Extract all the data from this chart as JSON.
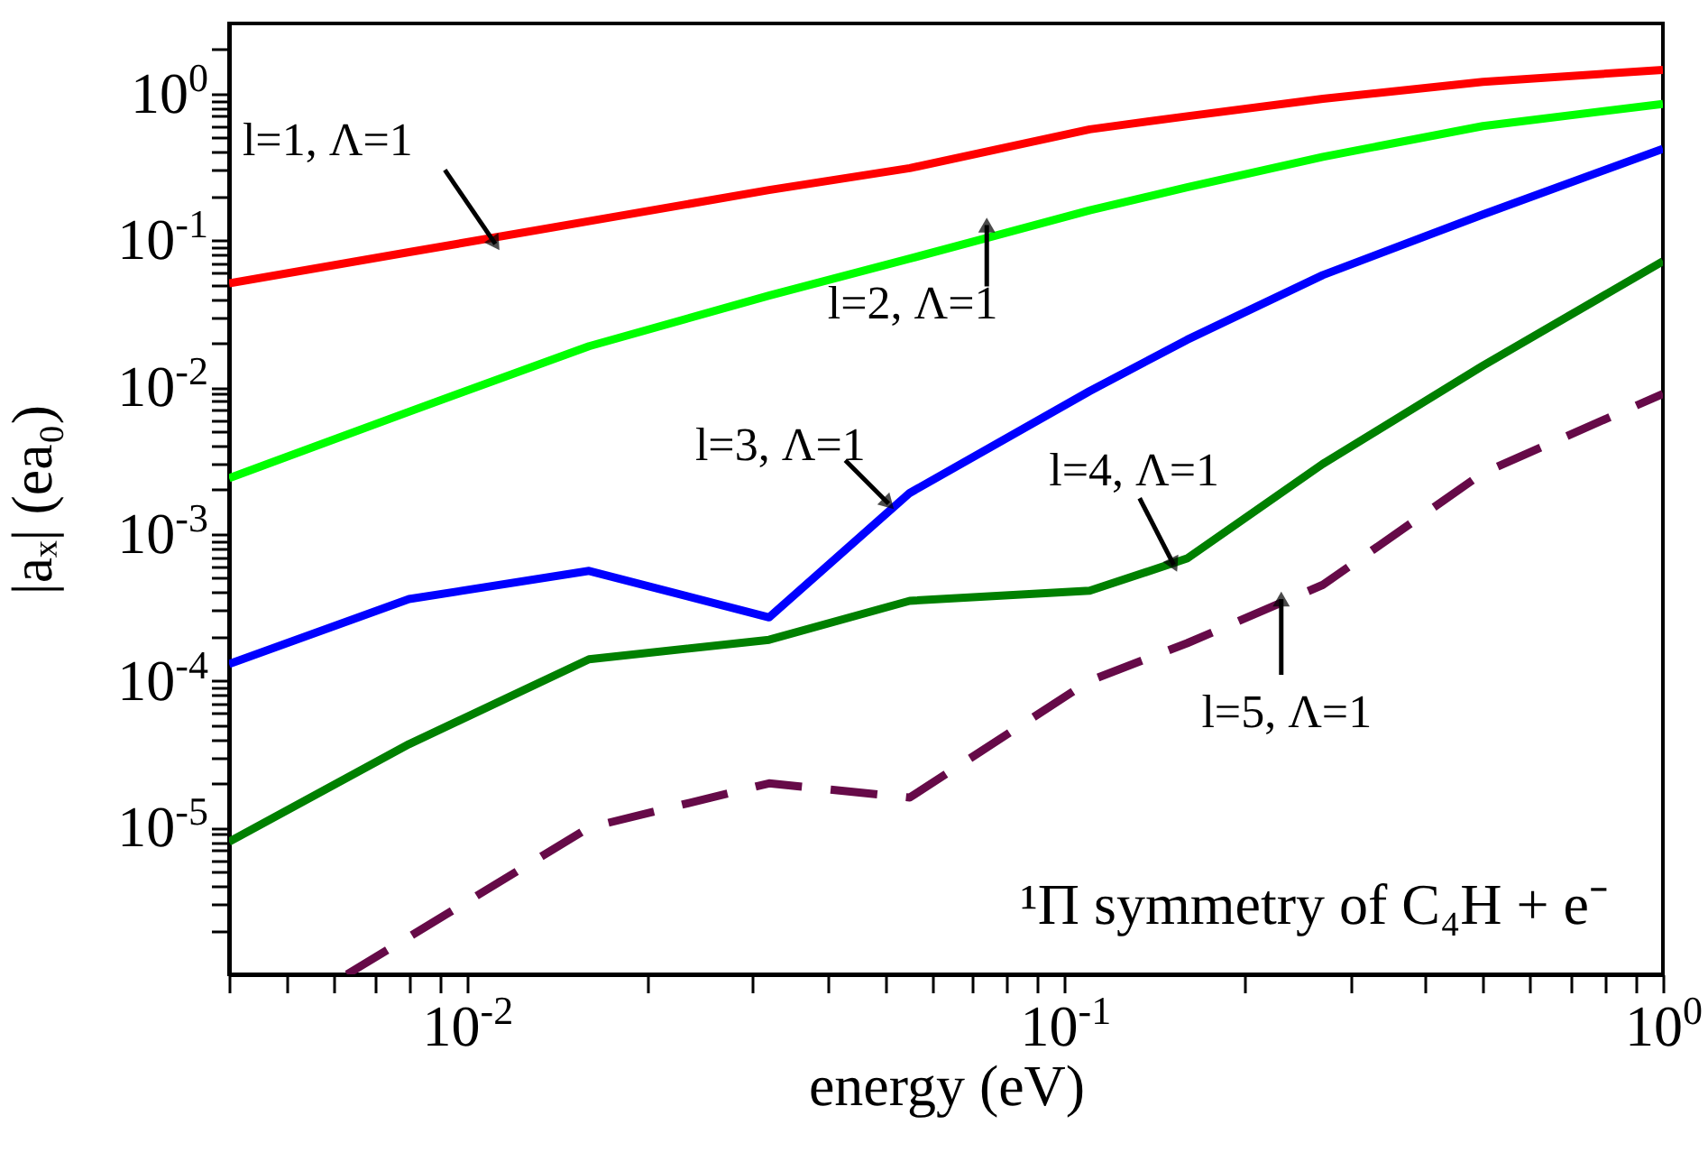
{
  "chart_data": {
    "type": "line",
    "xlabel": "energy (eV)",
    "ylabel": "|aₓ| (ea₀)",
    "log": "xy",
    "xlim": [
      0.004,
      1
    ],
    "ylim": [
      1e-06,
      3
    ],
    "xticks": [
      {
        "value": 0.004,
        "label": null
      },
      {
        "value": 0.005,
        "label": null
      },
      {
        "value": 0.006,
        "label": null
      },
      {
        "value": 0.007,
        "label": null
      },
      {
        "value": 0.008,
        "label": null
      },
      {
        "value": 0.009,
        "label": null
      },
      {
        "value": 0.01,
        "label": "10$^{-2}$"
      },
      {
        "value": 0.02,
        "label": null
      },
      {
        "value": 0.03,
        "label": null
      },
      {
        "value": 0.04,
        "label": null
      },
      {
        "value": 0.05,
        "label": null
      },
      {
        "value": 0.06,
        "label": null
      },
      {
        "value": 0.07,
        "label": null
      },
      {
        "value": 0.08,
        "label": null
      },
      {
        "value": 0.09,
        "label": null
      },
      {
        "value": 0.1,
        "label": "10$^{-1}$"
      },
      {
        "value": 0.2,
        "label": null
      },
      {
        "value": 0.3,
        "label": null
      },
      {
        "value": 0.4,
        "label": null
      },
      {
        "value": 0.5,
        "label": null
      },
      {
        "value": 0.6,
        "label": null
      },
      {
        "value": 0.7,
        "label": null
      },
      {
        "value": 0.8,
        "label": null
      },
      {
        "value": 0.9,
        "label": null
      },
      {
        "value": 1,
        "label": "10$^{0}$"
      }
    ],
    "yticks": [
      {
        "value": 2e-06,
        "label": null
      },
      {
        "value": 3e-06,
        "label": null
      },
      {
        "value": 4e-06,
        "label": null
      },
      {
        "value": 5e-06,
        "label": null
      },
      {
        "value": 6e-06,
        "label": null
      },
      {
        "value": 7e-06,
        "label": null
      },
      {
        "value": 8e-06,
        "label": null
      },
      {
        "value": 9e-06,
        "label": null
      },
      {
        "value": 1e-05,
        "label": "10$^{-5}$"
      },
      {
        "value": 2e-05,
        "label": null
      },
      {
        "value": 3e-05,
        "label": null
      },
      {
        "value": 4e-05,
        "label": null
      },
      {
        "value": 5e-05,
        "label": null
      },
      {
        "value": 6e-05,
        "label": null
      },
      {
        "value": 7e-05,
        "label": null
      },
      {
        "value": 8e-05,
        "label": null
      },
      {
        "value": 9e-05,
        "label": null
      },
      {
        "value": 0.0001,
        "label": "10$^{-4}$"
      },
      {
        "value": 0.0002,
        "label": null
      },
      {
        "value": 0.0003,
        "label": null
      },
      {
        "value": 0.0004,
        "label": null
      },
      {
        "value": 0.0005,
        "label": null
      },
      {
        "value": 0.0006,
        "label": null
      },
      {
        "value": 0.0007,
        "label": null
      },
      {
        "value": 0.0008,
        "label": null
      },
      {
        "value": 0.0009,
        "label": null
      },
      {
        "value": 0.001,
        "label": "10$^{-3}$"
      },
      {
        "value": 0.002,
        "label": null
      },
      {
        "value": 0.003,
        "label": null
      },
      {
        "value": 0.004,
        "label": null
      },
      {
        "value": 0.005,
        "label": null
      },
      {
        "value": 0.006,
        "label": null
      },
      {
        "value": 0.007,
        "label": null
      },
      {
        "value": 0.008,
        "label": null
      },
      {
        "value": 0.009,
        "label": null
      },
      {
        "value": 0.01,
        "label": "10$^{-2}$"
      },
      {
        "value": 0.02,
        "label": null
      },
      {
        "value": 0.03,
        "label": null
      },
      {
        "value": 0.04,
        "label": null
      },
      {
        "value": 0.05,
        "label": null
      },
      {
        "value": 0.06,
        "label": null
      },
      {
        "value": 0.07,
        "label": null
      },
      {
        "value": 0.08,
        "label": null
      },
      {
        "value": 0.09,
        "label": null
      },
      {
        "value": 0.1,
        "label": "10$^{-1}$"
      },
      {
        "value": 0.2,
        "label": null
      },
      {
        "value": 0.3,
        "label": null
      },
      {
        "value": 0.4,
        "label": null
      },
      {
        "value": 0.5,
        "label": null
      },
      {
        "value": 0.6,
        "label": null
      },
      {
        "value": 0.7,
        "label": null
      },
      {
        "value": 0.8,
        "label": null
      },
      {
        "value": 0.9,
        "label": null
      },
      {
        "value": 1,
        "label": "10$^{0}$"
      },
      {
        "value": 2,
        "label": null
      }
    ],
    "x": [
      0.004,
      0.008,
      0.016,
      0.032,
      0.055,
      0.11,
      0.16,
      0.27,
      0.5,
      1
    ],
    "series": [
      {
        "color": "#ff0000",
        "values": [
          0.051,
          0.083,
          0.135,
          0.22,
          0.31,
          0.57,
          0.7,
          0.92,
          1.2,
          1.45
        ]
      },
      {
        "color": "#00ff00",
        "values": [
          0.0024,
          0.0068,
          0.019,
          0.042,
          0.075,
          0.16,
          0.23,
          0.37,
          0.6,
          0.85
        ]
      },
      {
        "color": "#0000ff",
        "values": [
          0.00013,
          0.00036,
          0.00056,
          0.00027,
          0.0019,
          0.0094,
          0.021,
          0.058,
          0.15,
          0.42
        ]
      },
      {
        "color": "#008000",
        "values": [
          8e-06,
          3.7e-05,
          0.00014,
          0.00019,
          0.00035,
          0.00041,
          0.00068,
          0.003,
          0.014,
          0.072
        ]
      },
      {
        "color": "#660a48",
        "line_style": "dashed",
        "x": [
          0.0063,
          0.008,
          0.016,
          0.032,
          0.055,
          0.11,
          0.16,
          0.27,
          0.5,
          1
        ],
        "values": [
          1e-06,
          1.8e-06,
          1e-05,
          2e-05,
          1.6e-05,
          0.0001,
          0.00018,
          0.00045,
          0.0026,
          0.009
        ]
      }
    ],
    "annotations": [
      {
        "text": "l=1, Λ=1",
        "x": 0.011,
        "y": 0.1
      },
      {
        "text": "l=2, Λ=1",
        "x": 0.074,
        "y": 0.12
      },
      {
        "text": "l=3, Λ=1",
        "x": 0.05,
        "y": 0.0017
      },
      {
        "text": "l=4, Λ=1",
        "x": 0.15,
        "y": 0.00065
      },
      {
        "text": "l=5, Λ=1",
        "x": 0.23,
        "y": 0.00034
      },
      "¹Π symmetry of C₄H + e⁻"
    ],
    "grid": false
  }
}
